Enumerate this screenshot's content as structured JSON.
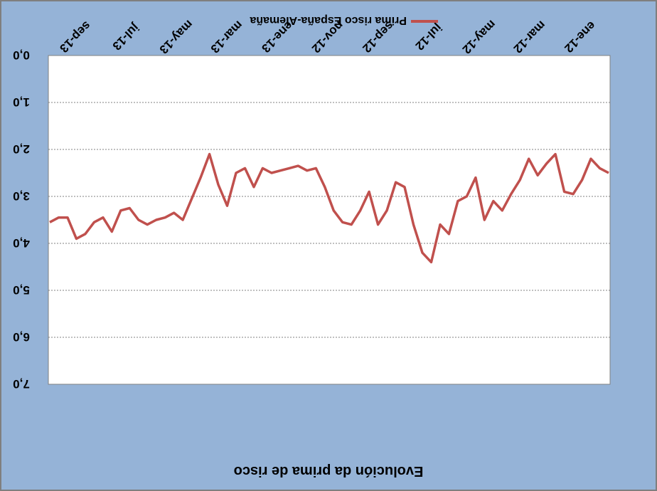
{
  "chart_data": {
    "type": "line",
    "orientation": "rotated 180 degrees",
    "title": "Evolución da prima de risco",
    "xlabel": "",
    "ylabel": "",
    "yticks": [
      "0,0",
      "1,0",
      "2,0",
      "3,0",
      "4,0",
      "5,0",
      "6,0",
      "7,0"
    ],
    "ylim": [
      0,
      7
    ],
    "xticks": [
      "ene-12",
      "mar-12",
      "may-12",
      "jul-12",
      "sep-12",
      "nov-12",
      "ene-13",
      "mar-13",
      "may-13",
      "jul-13",
      "sep-13"
    ],
    "grid": true,
    "legend_placement": "bottom",
    "series": [
      {
        "name": "Prima risco España-Alemaña",
        "color": "#c0504d",
        "x": [
          "ene-12",
          "ene-12",
          "ene-12",
          "feb-12",
          "feb-12",
          "feb-12",
          "mar-12",
          "mar-12",
          "mar-12",
          "abr-12",
          "abr-12",
          "abr-12",
          "may-12",
          "may-12",
          "may-12",
          "jun-12",
          "jun-12",
          "jun-12",
          "jul-12",
          "jul-12",
          "jul-12",
          "ago-12",
          "ago-12",
          "ago-12",
          "sep-12",
          "sep-12",
          "sep-12",
          "oct-12",
          "oct-12",
          "oct-12",
          "nov-12",
          "nov-12",
          "nov-12",
          "dic-12",
          "dic-12",
          "dic-12",
          "ene-13",
          "ene-13",
          "ene-13",
          "feb-13",
          "feb-13",
          "feb-13",
          "mar-13",
          "mar-13",
          "mar-13",
          "abr-13",
          "abr-13",
          "abr-13",
          "may-13",
          "may-13",
          "may-13",
          "jun-13",
          "jun-13",
          "jun-13",
          "jul-13",
          "jul-13",
          "jul-13",
          "ago-13",
          "ago-13",
          "ago-13",
          "sep-13",
          "sep-13",
          "sep-13",
          "oct-13"
        ],
        "values": [
          2.5,
          2.4,
          2.2,
          2.65,
          2.95,
          2.9,
          2.1,
          2.3,
          2.55,
          2.2,
          2.65,
          2.95,
          3.3,
          3.1,
          3.5,
          2.6,
          3.0,
          3.1,
          3.8,
          3.6,
          4.4,
          4.2,
          3.6,
          2.8,
          2.7,
          3.3,
          3.6,
          2.9,
          3.3,
          3.6,
          3.55,
          3.3,
          2.8,
          2.4,
          2.45,
          2.35,
          2.4,
          2.45,
          2.5,
          2.4,
          2.8,
          2.4,
          2.5,
          3.2,
          2.75,
          2.1,
          2.6,
          3.05,
          3.5,
          3.35,
          3.45,
          3.5,
          3.6,
          3.5,
          3.25,
          3.3,
          3.75,
          3.45,
          3.55,
          3.8,
          3.9,
          3.45,
          3.45,
          3.55
        ]
      }
    ]
  }
}
